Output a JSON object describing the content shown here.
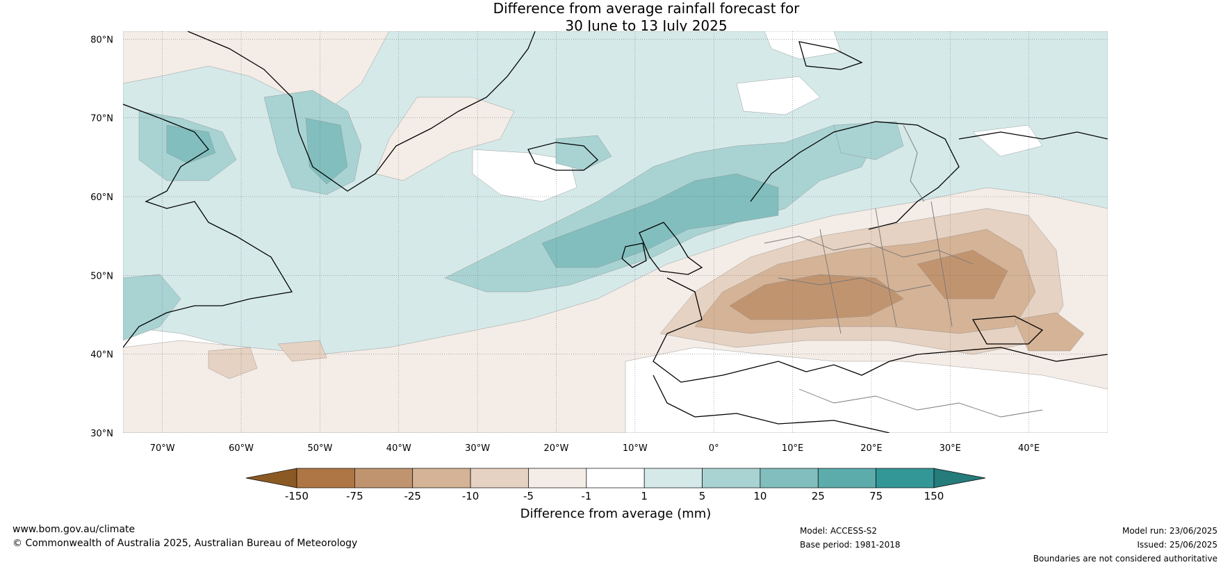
{
  "title_line1": "Difference from average rainfall forecast for",
  "title_line2": "30 June to 13 July 2025",
  "map": {
    "lat_ticks": [
      "80°N",
      "70°N",
      "60°N",
      "50°N",
      "40°N",
      "30°N"
    ],
    "lon_ticks": [
      "70°W",
      "60°W",
      "50°W",
      "40°W",
      "30°W",
      "20°W",
      "10°W",
      "0°",
      "10°E",
      "20°E",
      "30°E",
      "40°E"
    ],
    "extent": {
      "lon": [
        -75,
        50
      ],
      "lat": [
        30,
        81
      ]
    }
  },
  "colorbar": {
    "title": "Difference from average (mm)",
    "labels": [
      "-150",
      "-75",
      "-25",
      "-10",
      "-5",
      "-1",
      "1",
      "5",
      "10",
      "25",
      "75",
      "150"
    ],
    "colors": [
      "#8b5a24",
      "#ae7645",
      "#c19470",
      "#d5b396",
      "#e6d2c2",
      "#f4ece6",
      "#ffffff",
      "#d5e9e9",
      "#a9d3d3",
      "#82bebe",
      "#5cacac",
      "#349797",
      "#267b7b"
    ]
  },
  "footer": {
    "website": "www.bom.gov.au/climate",
    "copyright": "© Commonwealth of Australia 2025, Australian Bureau of Meteorology",
    "model": "Model: ACCESS-S2",
    "base_period": "Base period: 1981-2018",
    "model_run": "Model run: 23/06/2025",
    "issued": "Issued: 25/06/2025",
    "disclaimer": "Boundaries are not considered authoritative"
  }
}
